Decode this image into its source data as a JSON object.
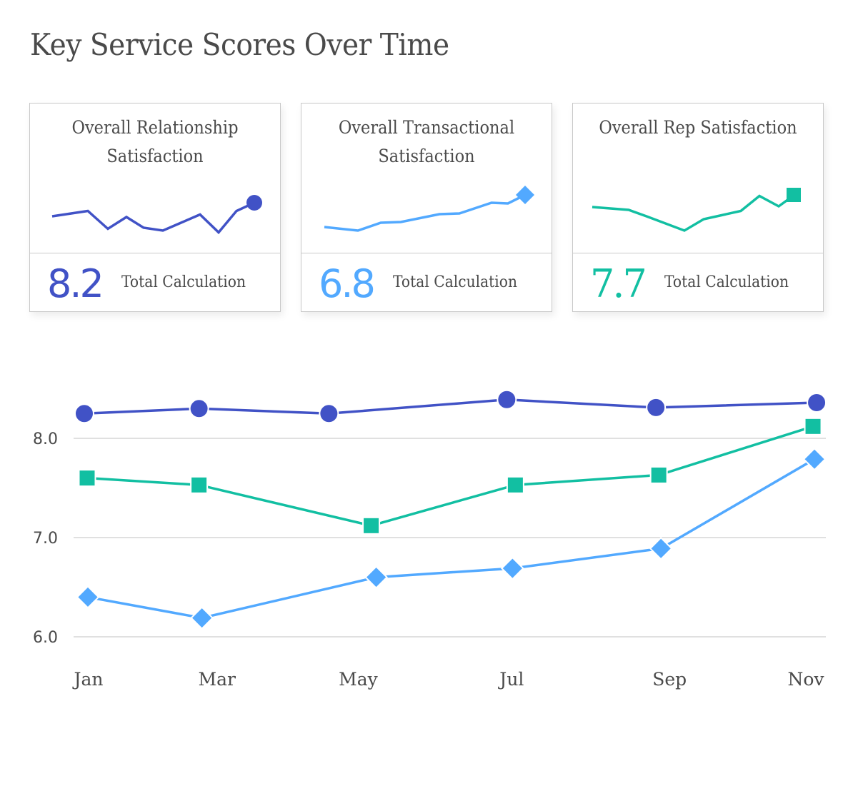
{
  "page": {
    "title": "Key Service Scores Over Time"
  },
  "cards": [
    {
      "title_line1": "Overall Relationship",
      "title_line2": "Satisfaction",
      "value": "8.2",
      "label": "Total Calculation",
      "color": "#4152c6",
      "marker": "circle",
      "sparkline": [
        0.4,
        0.55,
        0.05,
        0.38,
        0.08,
        0.0,
        0.45,
        -0.05,
        0.55,
        0.78
      ]
    },
    {
      "title_line1": "Overall Transactional",
      "title_line2": "Satisfaction",
      "value": "6.8",
      "label": "Total Calculation",
      "color": "#52a9ff",
      "marker": "diamond",
      "sparkline": [
        0.1,
        0.0,
        0.22,
        0.24,
        0.46,
        0.48,
        0.78,
        0.76,
        1.0
      ]
    },
    {
      "title_line1": "Overall Rep Satisfaction",
      "title_line2": "",
      "value": "7.7",
      "label": "Total Calculation",
      "color": "#12bfa2",
      "marker": "square",
      "sparkline": [
        0.66,
        0.58,
        0.4,
        0.0,
        0.32,
        0.55,
        0.97,
        0.68,
        0.84,
        1.0
      ]
    }
  ],
  "chart_data": {
    "type": "line",
    "title": "",
    "xlabel": "",
    "ylabel": "",
    "ylim": [
      6.0,
      8.0
    ],
    "yticks": [
      6.0,
      7.0,
      8.0
    ],
    "ytick_labels": [
      "6.0",
      "7.0",
      "8.0"
    ],
    "xlim": [
      1,
      11
    ],
    "xticks": [
      {
        "label": "Jan",
        "x": 1.0
      },
      {
        "label": "Mar",
        "x": 2.79
      },
      {
        "label": "May",
        "x": 4.76
      },
      {
        "label": "Jul",
        "x": 6.9
      },
      {
        "label": "Sep",
        "x": 9.1
      },
      {
        "label": "Nov",
        "x": 11.0
      }
    ],
    "grid": true,
    "legend": "none",
    "series": [
      {
        "name": "Overall Relationship Satisfaction",
        "color": "#4152c6",
        "marker": "circle",
        "x": [
          0.94,
          2.54,
          4.35,
          6.83,
          8.91,
          11.15
        ],
        "values": [
          8.25,
          8.3,
          8.25,
          8.39,
          8.31,
          8.36
        ]
      },
      {
        "name": "Overall Rep Satisfaction",
        "color": "#12bfa2",
        "marker": "square",
        "x": [
          0.98,
          2.54,
          4.94,
          6.95,
          8.95,
          11.1
        ],
        "values": [
          7.6,
          7.53,
          7.12,
          7.53,
          7.63,
          8.12
        ]
      },
      {
        "name": "Overall Transactional Satisfaction",
        "color": "#52a9ff",
        "marker": "diamond",
        "x": [
          0.99,
          2.58,
          5.01,
          6.91,
          8.98,
          11.12
        ],
        "values": [
          6.4,
          6.19,
          6.6,
          6.69,
          6.89,
          7.79
        ]
      }
    ]
  }
}
